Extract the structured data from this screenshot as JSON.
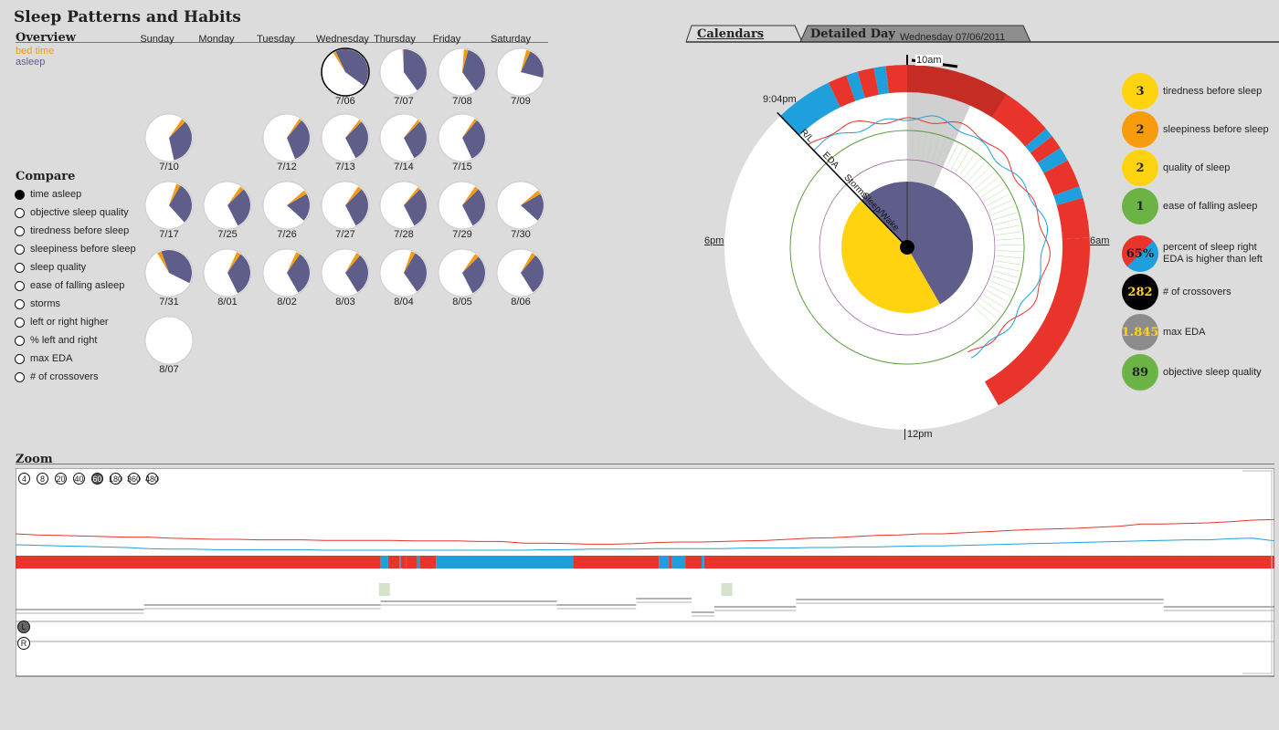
{
  "title": "Sleep Patterns and Habits",
  "overview": {
    "heading": "Overview",
    "legend": {
      "bed_time": "bed time",
      "asleep": "asleep"
    },
    "weekdays": [
      "Sunday",
      "Monday",
      "Tuesday",
      "Wednesday",
      "Thursday",
      "Friday",
      "Saturday"
    ],
    "colors": {
      "asleep": "#5f5e8a",
      "bed_time": "#f39c12",
      "selected": "#000000"
    },
    "selected_date": "7/06",
    "days": [
      {
        "date": "7/06",
        "weekday": 3,
        "week": 0,
        "asleep_fraction": 0.42,
        "start_angle": -25,
        "bed_fraction": 0.02
      },
      {
        "date": "7/07",
        "weekday": 4,
        "week": 0,
        "asleep_fraction": 0.4,
        "start_angle": 0,
        "bed_fraction": 0.01
      },
      {
        "date": "7/08",
        "weekday": 5,
        "week": 0,
        "asleep_fraction": 0.36,
        "start_angle": 15,
        "bed_fraction": 0.03
      },
      {
        "date": "7/09",
        "weekday": 6,
        "week": 0,
        "asleep_fraction": 0.22,
        "start_angle": 25,
        "bed_fraction": 0.03
      },
      {
        "date": "7/10",
        "weekday": 0,
        "week": 1,
        "asleep_fraction": 0.34,
        "start_angle": 45,
        "bed_fraction": 0.03
      },
      {
        "date": "7/12",
        "weekday": 2,
        "week": 1,
        "asleep_fraction": 0.33,
        "start_angle": 40,
        "bed_fraction": 0.02
      },
      {
        "date": "7/13",
        "weekday": 3,
        "week": 1,
        "asleep_fraction": 0.3,
        "start_angle": 45,
        "bed_fraction": 0.02
      },
      {
        "date": "7/14",
        "weekday": 4,
        "week": 1,
        "asleep_fraction": 0.3,
        "start_angle": 45,
        "bed_fraction": 0.02
      },
      {
        "date": "7/15",
        "weekday": 5,
        "week": 1,
        "asleep_fraction": 0.32,
        "start_angle": 40,
        "bed_fraction": 0.02
      },
      {
        "date": "7/17",
        "weekday": 0,
        "week": 2,
        "asleep_fraction": 0.3,
        "start_angle": 30,
        "bed_fraction": 0.03
      },
      {
        "date": "7/25",
        "weekday": 1,
        "week": 2,
        "asleep_fraction": 0.3,
        "start_angle": 45,
        "bed_fraction": 0.03
      },
      {
        "date": "7/26",
        "weekday": 2,
        "week": 2,
        "asleep_fraction": 0.2,
        "start_angle": 60,
        "bed_fraction": 0.03
      },
      {
        "date": "7/27",
        "weekday": 3,
        "week": 2,
        "asleep_fraction": 0.3,
        "start_angle": 45,
        "bed_fraction": 0.03
      },
      {
        "date": "7/28",
        "weekday": 4,
        "week": 2,
        "asleep_fraction": 0.3,
        "start_angle": 45,
        "bed_fraction": 0.02
      },
      {
        "date": "7/29",
        "weekday": 5,
        "week": 2,
        "asleep_fraction": 0.3,
        "start_angle": 45,
        "bed_fraction": 0.03
      },
      {
        "date": "7/30",
        "weekday": 6,
        "week": 2,
        "asleep_fraction": 0.2,
        "start_angle": 60,
        "bed_fraction": 0.03
      },
      {
        "date": "7/31",
        "weekday": 0,
        "week": 3,
        "asleep_fraction": 0.38,
        "start_angle": -20,
        "bed_fraction": 0.03
      },
      {
        "date": "8/01",
        "weekday": 1,
        "week": 3,
        "asleep_fraction": 0.33,
        "start_angle": 35,
        "bed_fraction": 0.03
      },
      {
        "date": "8/02",
        "weekday": 2,
        "week": 3,
        "asleep_fraction": 0.32,
        "start_angle": 35,
        "bed_fraction": 0.03
      },
      {
        "date": "8/03",
        "weekday": 3,
        "week": 3,
        "asleep_fraction": 0.3,
        "start_angle": 40,
        "bed_fraction": 0.03
      },
      {
        "date": "8/04",
        "weekday": 4,
        "week": 3,
        "asleep_fraction": 0.32,
        "start_angle": 30,
        "bed_fraction": 0.03
      },
      {
        "date": "8/05",
        "weekday": 5,
        "week": 3,
        "asleep_fraction": 0.3,
        "start_angle": 45,
        "bed_fraction": 0.03
      },
      {
        "date": "8/06",
        "weekday": 6,
        "week": 3,
        "asleep_fraction": 0.3,
        "start_angle": 40,
        "bed_fraction": 0.03
      },
      {
        "date": "8/07",
        "weekday": 0,
        "week": 4,
        "asleep_fraction": 0,
        "start_angle": 0,
        "bed_fraction": 0
      }
    ]
  },
  "compare": {
    "heading": "Compare",
    "selected_index": 0,
    "items": [
      "time asleep",
      "objective sleep quality",
      "tiredness before sleep",
      "sleepiness before sleep",
      "sleep quality",
      "ease of falling asleep",
      "storms",
      "left or right higher",
      "% left and right",
      "max EDA",
      "# of crossovers"
    ]
  },
  "tabs": [
    {
      "label": "Calendars",
      "active": false
    },
    {
      "label": "Detailed Day",
      "active": true
    }
  ],
  "detail": {
    "date_label": "Wednesday 07/06/2011",
    "start_time": "9:04pm",
    "end_time": "10am",
    "clock_labels": {
      "left": "6pm",
      "right": "6am",
      "bottom": "12pm"
    },
    "ring_labels": [
      "R/L",
      "EDA",
      "Storms",
      "Sleep/Wake"
    ],
    "asleep_from_hour": 0,
    "asleep_to_hour": 10,
    "awake_from_hour": 10,
    "awake_to_hour": 21.07,
    "colors": {
      "asleep": "#5f5e8a",
      "awake": "#ffd310",
      "left": "#e8342a",
      "right": "#1fa0dc",
      "highlight": "#bdbdbd"
    },
    "rl_segments": [
      {
        "from": 21.07,
        "to": 22.3,
        "side": "right"
      },
      {
        "from": 22.3,
        "to": 22.7,
        "side": "left"
      },
      {
        "from": 22.7,
        "to": 22.95,
        "side": "right"
      },
      {
        "from": 22.95,
        "to": 23.3,
        "side": "left"
      },
      {
        "from": 23.3,
        "to": 23.55,
        "side": "right"
      },
      {
        "from": 23.55,
        "to": 24,
        "side": "left"
      },
      {
        "from": 0,
        "to": 3.3,
        "side": "left"
      },
      {
        "from": 3.3,
        "to": 3.5,
        "side": "right"
      },
      {
        "from": 3.5,
        "to": 3.8,
        "side": "left"
      },
      {
        "from": 3.8,
        "to": 4.1,
        "side": "right"
      },
      {
        "from": 4.1,
        "to": 4.7,
        "side": "left"
      },
      {
        "from": 4.7,
        "to": 4.95,
        "side": "right"
      },
      {
        "from": 4.95,
        "to": 5.8,
        "side": "left"
      },
      {
        "from": 5.8,
        "to": 10,
        "side": "left"
      }
    ]
  },
  "metrics": [
    {
      "value": "3",
      "label": "tiredness before sleep",
      "color": "#ffd310",
      "text_color": "#222222"
    },
    {
      "value": "2",
      "label": "sleepiness before sleep",
      "color": "#f89c0e",
      "text_color": "#222222"
    },
    {
      "value": "2",
      "label": "quality of sleep",
      "color": "#ffd310",
      "text_color": "#222222"
    },
    {
      "value": "1",
      "label": "ease of falling asleep",
      "color": "#6ab344",
      "text_color": "#222222"
    },
    {
      "value": "65%",
      "label": "percent of sleep right EDA is higher than left",
      "color": "split",
      "text_color": "#222222"
    },
    {
      "value": "282",
      "label": "# of crossovers",
      "color": "#000000",
      "text_color": "#ffd310"
    },
    {
      "value": "1.845",
      "label": "max EDA",
      "color": "#8c8c8c",
      "text_color": "#ffd310"
    },
    {
      "value": "89",
      "label": "objective sleep quality",
      "color": "#6ab344",
      "text_color": "#222222"
    }
  ],
  "zoom": {
    "heading": "Zoom",
    "levels": [
      "4",
      "8",
      "20",
      "40",
      "60",
      "180",
      "360",
      "480"
    ],
    "selected_level": "60",
    "lr_buttons": [
      "L",
      "R"
    ],
    "rl_segments": [
      {
        "from": 0,
        "to": 0.29,
        "side": "left"
      },
      {
        "from": 0.29,
        "to": 0.296,
        "side": "right"
      },
      {
        "from": 0.296,
        "to": 0.305,
        "side": "left"
      },
      {
        "from": 0.305,
        "to": 0.306,
        "side": "right"
      },
      {
        "from": 0.306,
        "to": 0.31,
        "side": "left"
      },
      {
        "from": 0.31,
        "to": 0.319,
        "side": "left"
      },
      {
        "from": 0.319,
        "to": 0.321,
        "side": "right"
      },
      {
        "from": 0.321,
        "to": 0.334,
        "side": "left"
      },
      {
        "from": 0.334,
        "to": 0.443,
        "side": "right"
      },
      {
        "from": 0.443,
        "to": 0.511,
        "side": "left"
      },
      {
        "from": 0.511,
        "to": 0.519,
        "side": "right"
      },
      {
        "from": 0.519,
        "to": 0.521,
        "side": "left"
      },
      {
        "from": 0.521,
        "to": 0.532,
        "side": "right"
      },
      {
        "from": 0.532,
        "to": 0.545,
        "side": "left"
      },
      {
        "from": 0.545,
        "to": 0.547,
        "side": "right"
      },
      {
        "from": 0.547,
        "to": 1,
        "side": "left"
      }
    ],
    "storm_marks": [
      0.293,
      0.565
    ],
    "left_series": [
      0.3,
      0.28,
      0.27,
      0.26,
      0.25,
      0.24,
      0.24,
      0.22,
      0.21,
      0.2,
      0.2,
      0.19,
      0.19,
      0.19,
      0.18,
      0.18,
      0.18,
      0.18,
      0.17,
      0.17,
      0.17,
      0.16,
      0.16,
      0.13,
      0.13,
      0.12,
      0.11,
      0.11,
      0.12,
      0.14,
      0.15,
      0.15,
      0.16,
      0.17,
      0.18,
      0.2,
      0.22,
      0.23,
      0.25,
      0.27,
      0.28,
      0.3,
      0.3,
      0.32,
      0.34,
      0.36,
      0.38,
      0.39,
      0.4,
      0.42,
      0.44,
      0.48,
      0.48,
      0.49,
      0.5,
      0.52,
      0.55,
      0.56
    ],
    "right_series": [
      0.15,
      0.14,
      0.13,
      0.12,
      0.11,
      0.1,
      0.08,
      0.07,
      0.07,
      0.06,
      0.06,
      0.06,
      0.06,
      0.06,
      0.05,
      0.05,
      0.05,
      0.05,
      0.05,
      0.05,
      0.05,
      0.05,
      0.05,
      0.05,
      0.06,
      0.06,
      0.07,
      0.07,
      0.07,
      0.08,
      0.08,
      0.08,
      0.08,
      0.09,
      0.09,
      0.09,
      0.1,
      0.1,
      0.11,
      0.11,
      0.12,
      0.13,
      0.13,
      0.14,
      0.15,
      0.16,
      0.17,
      0.18,
      0.19,
      0.2,
      0.21,
      0.22,
      0.23,
      0.24,
      0.24,
      0.26,
      0.27,
      0.22
    ]
  }
}
